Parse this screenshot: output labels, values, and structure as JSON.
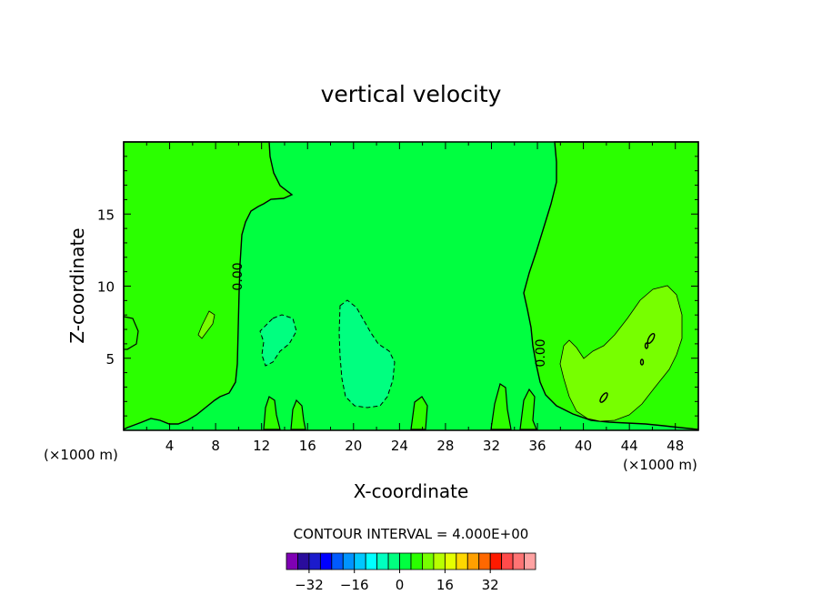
{
  "chart_data": {
    "type": "contour",
    "title": "vertical velocity",
    "xlabel": "X-coordinate",
    "ylabel": "Z-coordinate",
    "x_unit": "(×1000 m)",
    "xlim": [
      0,
      50
    ],
    "ylim": [
      0,
      20
    ],
    "xticks": [
      4,
      8,
      12,
      16,
      20,
      24,
      28,
      32,
      36,
      40,
      44,
      48
    ],
    "yticks": [
      5,
      10,
      15
    ],
    "contour_interval_text": "CONTOUR INTERVAL = 4.000E+00",
    "contour_label": "0.00",
    "colorbar": {
      "colors": [
        "#7f00b4",
        "#2a0c9c",
        "#1b1bcc",
        "#0000ff",
        "#005aff",
        "#0094ff",
        "#00c8ff",
        "#00ffff",
        "#00ffc0",
        "#00ff80",
        "#00ff40",
        "#2bff00",
        "#77ff00",
        "#b8ff00",
        "#e5ff00",
        "#ffd700",
        "#ffa000",
        "#ff6800",
        "#ff1a00",
        "#ff4b4b",
        "#ff7474",
        "#ffa2a2"
      ],
      "tick_labels": [
        -32,
        -16,
        0,
        16,
        32
      ]
    },
    "regions": [
      {
        "level": "-4 to 0",
        "color": "#00ff40",
        "description": "central band of weak downward motion"
      },
      {
        "level": "0 to 4",
        "color": "#2bff00",
        "description": "left and right areas of weak upward motion"
      },
      {
        "level": "-8 to -4",
        "color": "#00ff80",
        "description": "pocket near x≈20, z≈2–9"
      },
      {
        "level": "4 to 8",
        "color": "#77ff00",
        "description": "updraft near x≈38–49, z≈0–10"
      }
    ]
  }
}
